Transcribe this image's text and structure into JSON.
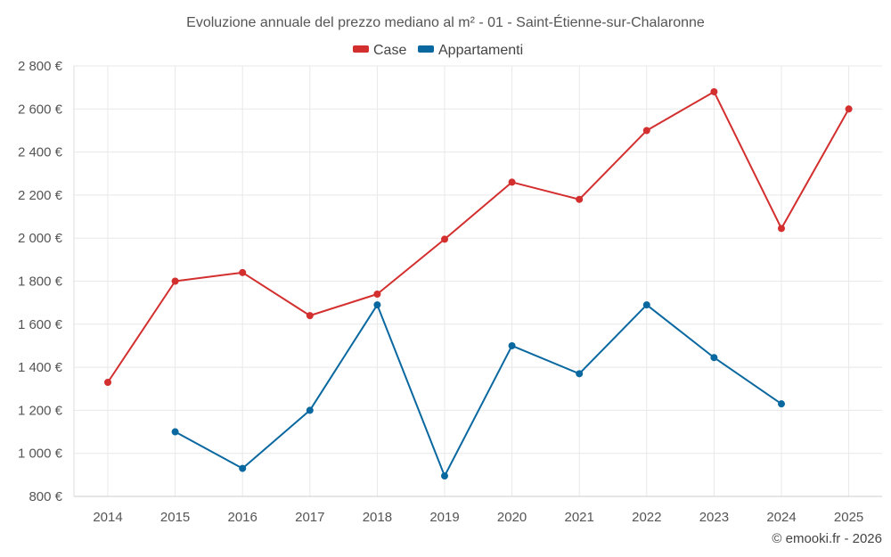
{
  "chart_data": {
    "type": "line",
    "title": "Evoluzione annuale del prezzo mediano al m² - 01 - Saint-Étienne-sur-Chalaronne",
    "categories": [
      "2014",
      "2015",
      "2016",
      "2017",
      "2018",
      "2019",
      "2020",
      "2021",
      "2022",
      "2023",
      "2024",
      "2025"
    ],
    "y_ticks": [
      800,
      1000,
      1200,
      1400,
      1600,
      1800,
      2000,
      2200,
      2400,
      2600,
      2800
    ],
    "y_tick_labels": [
      "800 €",
      "1 000 €",
      "1 200 €",
      "1 400 €",
      "1 600 €",
      "1 800 €",
      "2 000 €",
      "2 200 €",
      "2 400 €",
      "2 600 €",
      "2 800 €"
    ],
    "ylim": [
      800,
      2800
    ],
    "grid": true,
    "legend_position": "top-center",
    "series": [
      {
        "name": "Case",
        "color": "#d32f2f",
        "values": [
          1330,
          1800,
          1840,
          1640,
          1740,
          1995,
          2260,
          2180,
          2500,
          2680,
          2045,
          2600
        ]
      },
      {
        "name": "Appartamenti",
        "color": "#0a68a0",
        "values": [
          null,
          1100,
          930,
          1200,
          1690,
          895,
          1500,
          1370,
          1690,
          1445,
          1230,
          null
        ]
      }
    ]
  },
  "credit": "© emooki.fr - 2026"
}
